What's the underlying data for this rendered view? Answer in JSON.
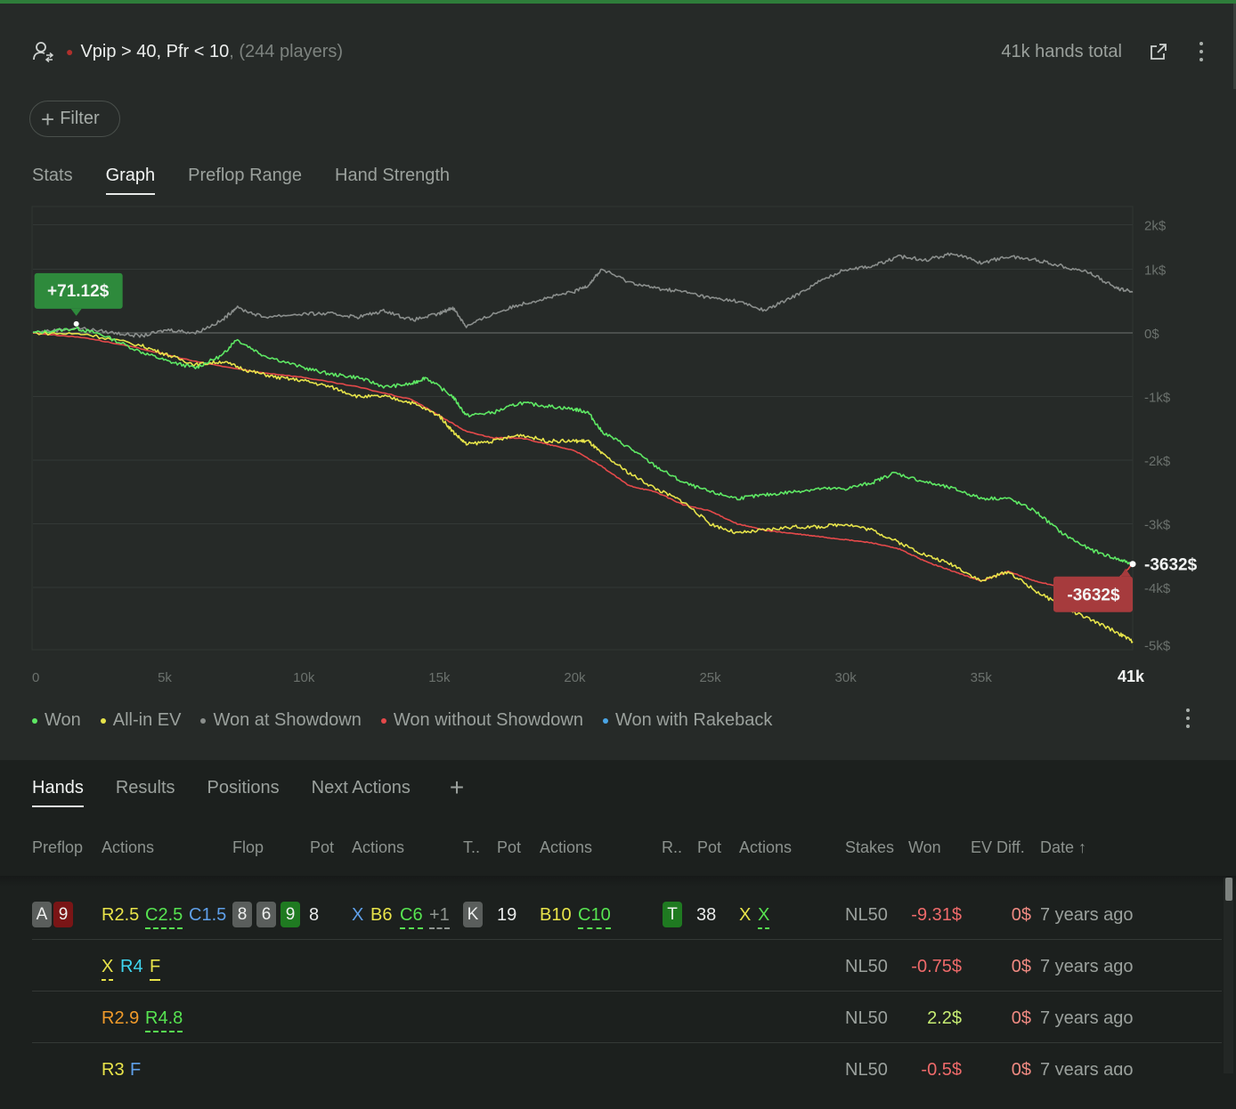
{
  "header": {
    "title": "Vpip > 40, Pfr < 10",
    "subtitle": ", (244 players)",
    "hands_total": "41k hands total"
  },
  "filter": {
    "label": "Filter"
  },
  "view_tabs": [
    {
      "label": "Stats",
      "active": false
    },
    {
      "label": "Graph",
      "active": true
    },
    {
      "label": "Preflop Range",
      "active": false
    },
    {
      "label": "Hand Strength",
      "active": false
    }
  ],
  "chart_data": {
    "type": "line",
    "x_ticks": [
      "0",
      "5k",
      "10k",
      "15k",
      "20k",
      "25k",
      "30k",
      "35k",
      "41k"
    ],
    "x_tick_values": [
      0,
      5000,
      10000,
      15000,
      20000,
      25000,
      30000,
      35000,
      40600
    ],
    "y_ticks": [
      "2k$",
      "1k$",
      "0$",
      "-1k$",
      "-2k$",
      "-3k$",
      "-4k$",
      "-5k$"
    ],
    "y_tick_values": [
      1700,
      1000,
      0,
      -1000,
      -2000,
      -3000,
      -4000,
      -4900
    ],
    "xlim": [
      0,
      40600
    ],
    "ylim": [
      -5000,
      2000
    ],
    "grid": true,
    "legend_position": "bottom-left",
    "callouts": [
      {
        "text": "+71.12$",
        "x": 1600,
        "y": 71.12,
        "color": "#2e8a3c"
      },
      {
        "text": "-3632$",
        "x": 40600,
        "y": -3632,
        "color": "#a63b3d"
      }
    ],
    "end_label": "-3632$",
    "series": [
      {
        "name": "Won",
        "color": "#5ee864",
        "x": [
          0,
          1600,
          2500,
          4000,
          5000,
          6000,
          7000,
          7500,
          8500,
          10000,
          11000,
          12000,
          13000,
          14000,
          14500,
          15500,
          16000,
          17000,
          18000,
          19000,
          20000,
          20500,
          21000,
          22000,
          23000,
          24000,
          25000,
          26000,
          27000,
          28000,
          29000,
          30000,
          31000,
          31800,
          33000,
          34000,
          35000,
          36000,
          37000,
          38000,
          39000,
          40000,
          40600
        ],
        "y": [
          0,
          70,
          -20,
          -300,
          -450,
          -550,
          -350,
          -100,
          -350,
          -550,
          -650,
          -700,
          -850,
          -800,
          -700,
          -1000,
          -1300,
          -1250,
          -1100,
          -1150,
          -1200,
          -1250,
          -1550,
          -1800,
          -2100,
          -2350,
          -2500,
          -2600,
          -2550,
          -2500,
          -2450,
          -2450,
          -2350,
          -2200,
          -2350,
          -2450,
          -2600,
          -2600,
          -2800,
          -3150,
          -3400,
          -3550,
          -3632
        ]
      },
      {
        "name": "All-in EV",
        "color": "#e6e34a",
        "x": [
          0,
          2000,
          4000,
          5000,
          6000,
          7000,
          8000,
          9000,
          10000,
          11000,
          12000,
          13000,
          14000,
          15000,
          15500,
          16000,
          17000,
          18000,
          19000,
          20000,
          20500,
          21000,
          22000,
          23000,
          24000,
          25000,
          26000,
          27000,
          28000,
          29000,
          30000,
          31000,
          32000,
          33000,
          34000,
          35000,
          36000,
          37000,
          38000,
          39000,
          40000,
          40600
        ],
        "y": [
          0,
          -20,
          -200,
          -350,
          -500,
          -450,
          -600,
          -700,
          -750,
          -850,
          -1000,
          -1000,
          -1100,
          -1300,
          -1550,
          -1750,
          -1700,
          -1600,
          -1700,
          -1700,
          -1700,
          -1900,
          -2200,
          -2450,
          -2650,
          -3000,
          -3150,
          -3100,
          -3050,
          -3050,
          -3000,
          -3100,
          -3300,
          -3500,
          -3650,
          -3900,
          -3750,
          -4050,
          -4300,
          -4500,
          -4700,
          -4850
        ]
      },
      {
        "name": "Won at Showdown",
        "color": "#8a8e8c",
        "x": [
          0,
          1600,
          3000,
          4000,
          5000,
          6000,
          7000,
          7500,
          8500,
          10000,
          11000,
          12000,
          13000,
          14000,
          15000,
          15500,
          16000,
          17000,
          18000,
          19000,
          20000,
          20500,
          21000,
          22000,
          23000,
          24000,
          25000,
          26000,
          27000,
          28000,
          29000,
          30000,
          31000,
          32000,
          33000,
          34000,
          35000,
          36000,
          37000,
          38000,
          39000,
          40000,
          40600
        ],
        "y": [
          0,
          80,
          0,
          -50,
          50,
          0,
          200,
          400,
          250,
          300,
          300,
          250,
          350,
          200,
          300,
          400,
          100,
          300,
          450,
          550,
          650,
          750,
          1000,
          800,
          700,
          650,
          550,
          500,
          350,
          550,
          800,
          1000,
          1050,
          1200,
          1150,
          1250,
          1100,
          1200,
          1150,
          1050,
          950,
          700,
          650
        ]
      },
      {
        "name": "Won without Showdown",
        "color": "#e4494a",
        "x": [
          0,
          2000,
          4000,
          6000,
          8000,
          10000,
          12000,
          14000,
          15000,
          16000,
          17000,
          18000,
          19000,
          20000,
          21000,
          22000,
          23000,
          24000,
          25000,
          26000,
          27000,
          28000,
          29000,
          30000,
          31000,
          32000,
          33000,
          34000,
          35000,
          36000,
          37000,
          38000,
          39000,
          40000,
          40600
        ],
        "y": [
          0,
          -80,
          -250,
          -450,
          -600,
          -700,
          -850,
          -1050,
          -1300,
          -1550,
          -1650,
          -1650,
          -1750,
          -1850,
          -2100,
          -2400,
          -2500,
          -2700,
          -2800,
          -3000,
          -3100,
          -3150,
          -3200,
          -3250,
          -3300,
          -3400,
          -3600,
          -3750,
          -3900,
          -3750,
          -3900,
          -4000,
          -3950,
          -3900,
          -3632
        ]
      },
      {
        "name": "Won with Rakeback",
        "color": "#4aa5e6",
        "x": [],
        "y": []
      }
    ]
  },
  "legend": [
    {
      "label": "Won",
      "color": "#5ee864"
    },
    {
      "label": "All-in EV",
      "color": "#e6e34a"
    },
    {
      "label": "Won at Showdown",
      "color": "#8a8e8c"
    },
    {
      "label": "Won without Showdown",
      "color": "#e4494a"
    },
    {
      "label": "Won with Rakeback",
      "color": "#4aa5e6"
    }
  ],
  "bottom_tabs": [
    {
      "label": "Hands",
      "active": true
    },
    {
      "label": "Results",
      "active": false
    },
    {
      "label": "Positions",
      "active": false
    },
    {
      "label": "Next Actions",
      "active": false
    }
  ],
  "table": {
    "columns": [
      "Preflop",
      "Actions",
      "Flop",
      "Pot",
      "Actions",
      "T..",
      "Pot",
      "Actions",
      "R..",
      "Pot",
      "Actions",
      "Stakes",
      "Won",
      "EV Diff.",
      "Date ↑"
    ],
    "rows": [
      {
        "preflop": [
          "A",
          "9"
        ],
        "pre_actions": [
          "R2.5",
          "C2.5",
          "C1.5"
        ],
        "flop": [
          "8",
          "6",
          "9"
        ],
        "flop_pot": "8",
        "flop_actions": [
          "X",
          "B6",
          "C6",
          "+1"
        ],
        "turn": "K",
        "turn_pot": "19",
        "turn_actions": [
          "B10",
          "C10"
        ],
        "river": "T",
        "river_pot": "38",
        "river_actions": [
          "X",
          "X"
        ],
        "stakes": "NL50",
        "won": "-9.31$",
        "ev_diff": "0$",
        "date": "7 years ago"
      },
      {
        "pre_actions": [
          "X",
          "R4",
          "F"
        ],
        "stakes": "NL50",
        "won": "-0.75$",
        "ev_diff": "0$",
        "date": "7 years ago"
      },
      {
        "pre_actions": [
          "R2.9",
          "R4.8"
        ],
        "stakes": "NL50",
        "won": "2.2$",
        "ev_diff": "0$",
        "date": "7 years ago"
      },
      {
        "pre_actions": [
          "R3",
          "F"
        ],
        "stakes": "NL50",
        "won": "-0.5$",
        "ev_diff": "0$",
        "date": "7 years ago"
      }
    ]
  }
}
